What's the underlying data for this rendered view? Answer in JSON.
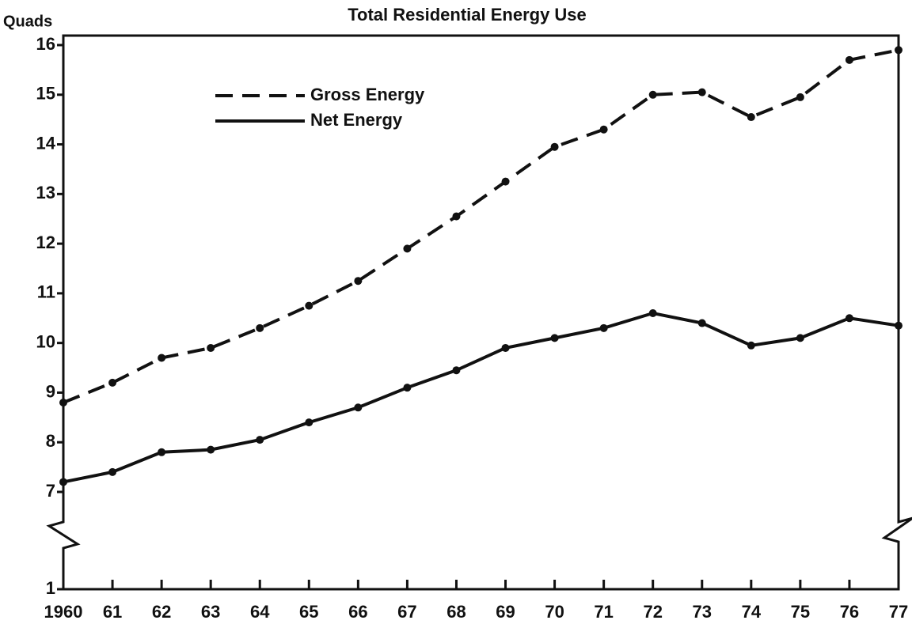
{
  "chart_data": {
    "type": "line",
    "title": "Total Residential Energy Use",
    "ylabel": "Quads",
    "categories": [
      "1960",
      "61",
      "62",
      "63",
      "64",
      "65",
      "66",
      "67",
      "68",
      "69",
      "70",
      "71",
      "72",
      "73",
      "74",
      "75",
      "76",
      "77"
    ],
    "series": [
      {
        "name": "Gross Energy",
        "color": "#111111",
        "dash": "dashed",
        "values": [
          8.8,
          9.2,
          9.7,
          9.9,
          10.3,
          10.75,
          11.25,
          11.9,
          12.55,
          13.25,
          13.95,
          14.3,
          15.0,
          15.05,
          14.55,
          14.95,
          15.7,
          15.9
        ]
      },
      {
        "name": "Net Energy",
        "color": "#111111",
        "dash": "solid",
        "values": [
          7.2,
          7.4,
          7.8,
          7.85,
          8.05,
          8.4,
          8.7,
          9.1,
          9.45,
          9.9,
          10.1,
          10.3,
          10.6,
          10.4,
          9.95,
          10.1,
          10.5,
          10.35
        ]
      }
    ],
    "ylim": [
      1,
      16
    ],
    "y_break": [
      1,
      7
    ],
    "yticks": [
      1,
      7,
      8,
      9,
      10,
      11,
      12,
      13,
      14,
      15,
      16
    ],
    "grid": false,
    "legend": "upper left"
  }
}
